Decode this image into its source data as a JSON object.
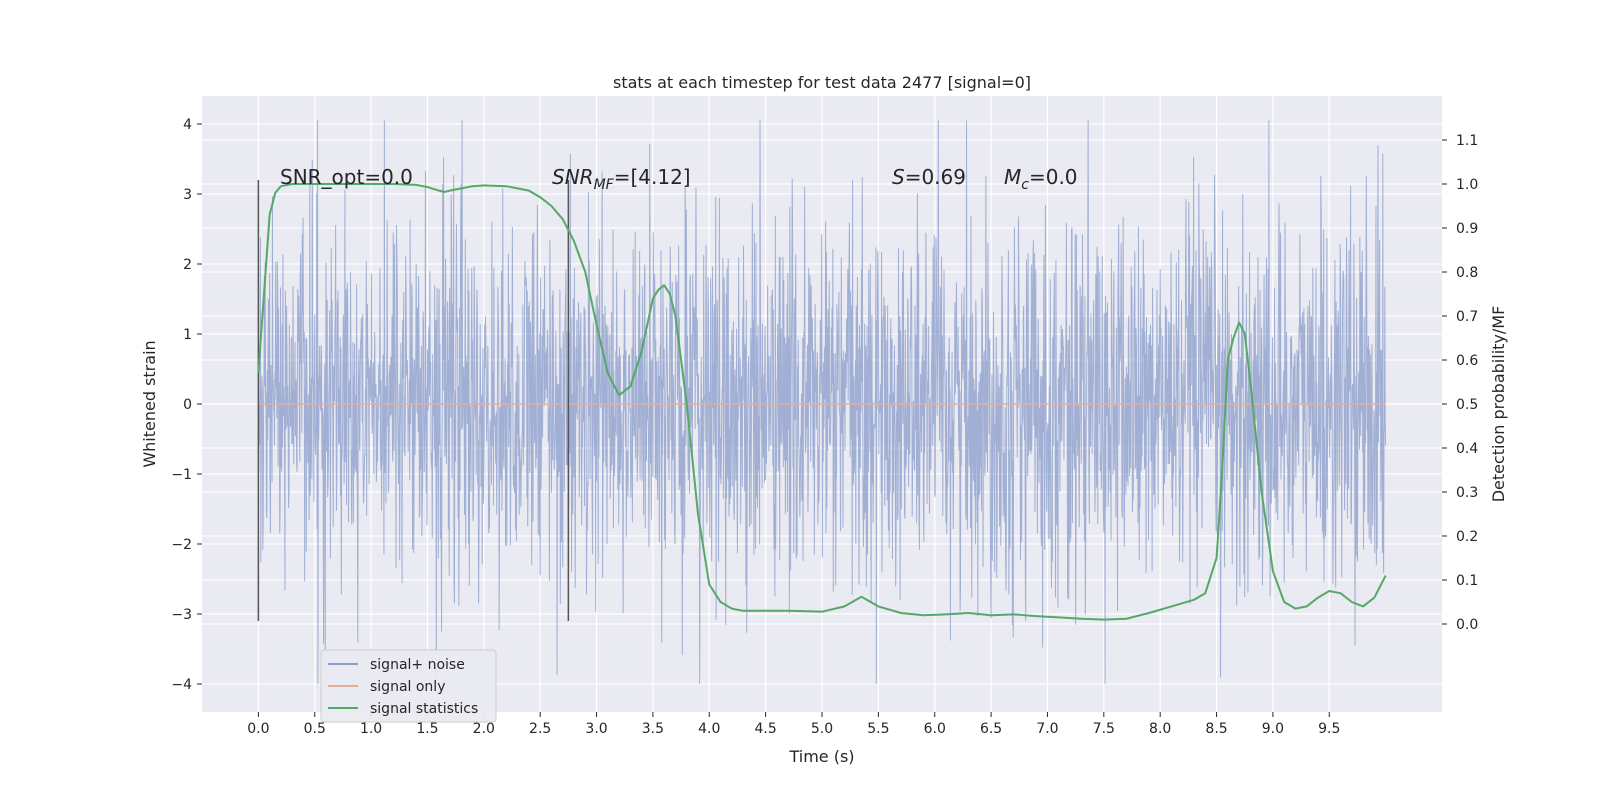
{
  "chart_data": {
    "type": "line",
    "title": "stats at each timestep for test data 2477 [signal=0]",
    "xlabel": "Time (s)",
    "ylabel": "Whitened strain",
    "y2label": "Detection probability/MF",
    "xlim": [
      -0.5,
      10.5
    ],
    "ylim": [
      -4.4,
      4.4
    ],
    "y2lim": [
      -0.2,
      1.2
    ],
    "xticks": [
      "0.0",
      "0.5",
      "1.0",
      "1.5",
      "2.0",
      "2.5",
      "3.0",
      "3.5",
      "4.0",
      "4.5",
      "5.0",
      "5.5",
      "6.0",
      "6.5",
      "7.0",
      "7.5",
      "8.0",
      "8.5",
      "9.0",
      "9.5"
    ],
    "yticks": [
      "4",
      "3",
      "2",
      "1",
      "0",
      "−1",
      "−2",
      "−3",
      "−4"
    ],
    "y2ticks": [
      "1.1",
      "1.0",
      "0.9",
      "0.8",
      "0.7",
      "0.6",
      "0.5",
      "0.4",
      "0.3",
      "0.2",
      "0.1",
      "0.0"
    ],
    "grid": true,
    "legend_position": "lower-left",
    "annotations": {
      "snr_opt": "SNR_opt=0.0",
      "snr_mf_main": "SNR",
      "snr_mf_sub": "MF",
      "snr_mf_value": "=[4.12]",
      "s_symbol": "S",
      "s_value": "=0.69",
      "mc_symbol": "M",
      "mc_sub": "c",
      "mc_value": "=0.0"
    },
    "vertical_markers": [
      {
        "x": 0.0,
        "y": [
          -3.1,
          3.2
        ]
      },
      {
        "x": 2.75,
        "y": [
          -3.1,
          3.2
        ]
      }
    ],
    "noise": {
      "x_range": [
        0.0,
        10.0
      ],
      "amplitude": 1.3,
      "peak_max": 4.05,
      "trough_min": -4.0
    },
    "series": [
      {
        "name": "signal+ noise",
        "color": "#8da0cb"
      },
      {
        "name": "signal only",
        "color": "#e5ae98",
        "x": [
          0.0,
          10.0
        ],
        "y": [
          0.0,
          0.0
        ]
      },
      {
        "name": "signal statistics",
        "color": "#55a868",
        "axis": "right",
        "x": [
          0.0,
          0.05,
          0.1,
          0.15,
          0.2,
          0.3,
          0.5,
          0.8,
          1.0,
          1.2,
          1.4,
          1.5,
          1.6,
          1.65,
          1.7,
          1.8,
          1.9,
          2.0,
          2.2,
          2.4,
          2.5,
          2.6,
          2.7,
          2.8,
          2.9,
          3.0,
          3.1,
          3.2,
          3.3,
          3.4,
          3.5,
          3.55,
          3.6,
          3.65,
          3.7,
          3.8,
          3.9,
          4.0,
          4.1,
          4.2,
          4.3,
          4.5,
          4.7,
          5.0,
          5.2,
          5.35,
          5.5,
          5.7,
          5.9,
          6.1,
          6.3,
          6.5,
          6.7,
          6.9,
          7.1,
          7.3,
          7.5,
          7.7,
          7.9,
          8.1,
          8.3,
          8.4,
          8.5,
          8.55,
          8.6,
          8.65,
          8.7,
          8.75,
          8.8,
          8.9,
          9.0,
          9.1,
          9.2,
          9.3,
          9.4,
          9.5,
          9.6,
          9.7,
          9.8,
          9.9,
          10.0
        ],
        "y": [
          0.57,
          0.75,
          0.93,
          0.98,
          0.995,
          1.0,
          1.0,
          1.0,
          1.0,
          1.0,
          0.998,
          0.993,
          0.985,
          0.982,
          0.985,
          0.99,
          0.995,
          0.997,
          0.995,
          0.985,
          0.97,
          0.95,
          0.92,
          0.87,
          0.8,
          0.68,
          0.57,
          0.52,
          0.54,
          0.62,
          0.74,
          0.76,
          0.77,
          0.75,
          0.7,
          0.5,
          0.25,
          0.09,
          0.05,
          0.035,
          0.03,
          0.03,
          0.03,
          0.028,
          0.04,
          0.062,
          0.04,
          0.025,
          0.02,
          0.022,
          0.025,
          0.02,
          0.022,
          0.018,
          0.015,
          0.012,
          0.01,
          0.012,
          0.025,
          0.04,
          0.055,
          0.07,
          0.15,
          0.35,
          0.6,
          0.65,
          0.685,
          0.66,
          0.55,
          0.3,
          0.12,
          0.05,
          0.035,
          0.04,
          0.06,
          0.075,
          0.07,
          0.05,
          0.04,
          0.06,
          0.11
        ]
      }
    ]
  }
}
